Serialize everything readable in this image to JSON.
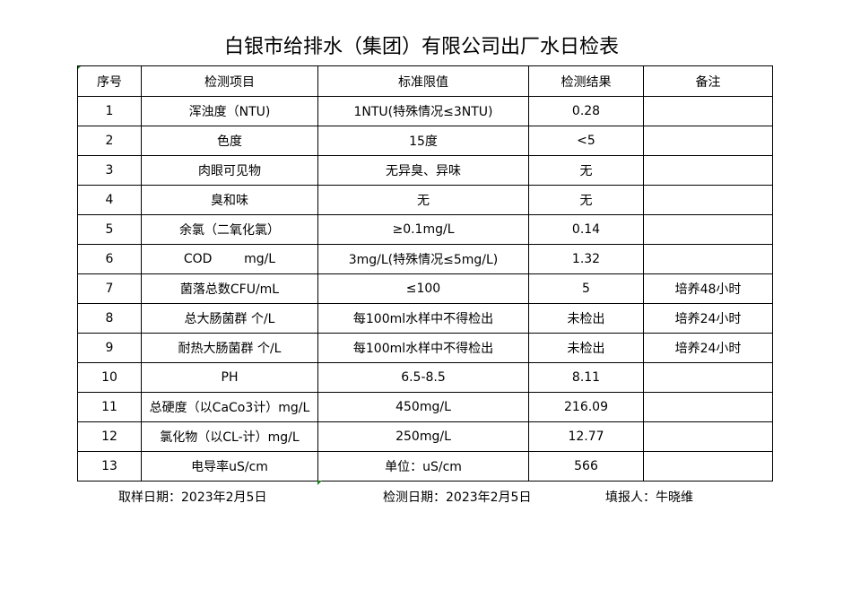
{
  "title": "白银市给排水（集团）有限公司出厂水日检表",
  "headers": [
    "序号",
    "检测项目",
    "标准限值",
    "检测结果",
    "备注"
  ],
  "rows": [
    [
      "1",
      "浑浊度（NTU)",
      "1NTU(特殊情况≤3NTU)",
      "0.28",
      ""
    ],
    [
      "2",
      "色度",
      "15度",
      "<5",
      ""
    ],
    [
      "3",
      "肉眼可见物",
      "无异臭、异味",
      "无",
      ""
    ],
    [
      "4",
      "臭和味",
      "无",
      "无",
      ""
    ],
    [
      "5",
      "余氯（二氧化氯）",
      "≥0.1mg/L",
      "0.14",
      ""
    ],
    [
      "6",
      "COD        mg/L",
      "3mg/L(特殊情况≤5mg/L)",
      "1.32",
      ""
    ],
    [
      "7",
      "菌落总数CFU/mL",
      "≤100",
      "5",
      "培养48小时"
    ],
    [
      "8",
      "总大肠菌群 个/L",
      "每100ml水样中不得检出",
      "未检出",
      "培养24小时"
    ],
    [
      "9",
      "耐热大肠菌群 个/L",
      "每100ml水样中不得检出",
      "未检出",
      "培养24小时"
    ],
    [
      "10",
      "PH",
      "6.5-8.5",
      "8.11",
      ""
    ],
    [
      "11",
      "总硬度（以CaCo3计）mg/L",
      "450mg/L",
      "216.09",
      ""
    ],
    [
      "12",
      "氯化物（以CL-计）mg/L",
      "250mg/L",
      "12.77",
      ""
    ],
    [
      "13",
      "电导率uS/cm",
      "单位：uS/cm",
      "566",
      ""
    ]
  ],
  "footer": {
    "sample_date": "取样日期：2023年2月5日",
    "test_date": "检测日期：2023年2月5日",
    "reporter": "填报人：牛晓维"
  }
}
